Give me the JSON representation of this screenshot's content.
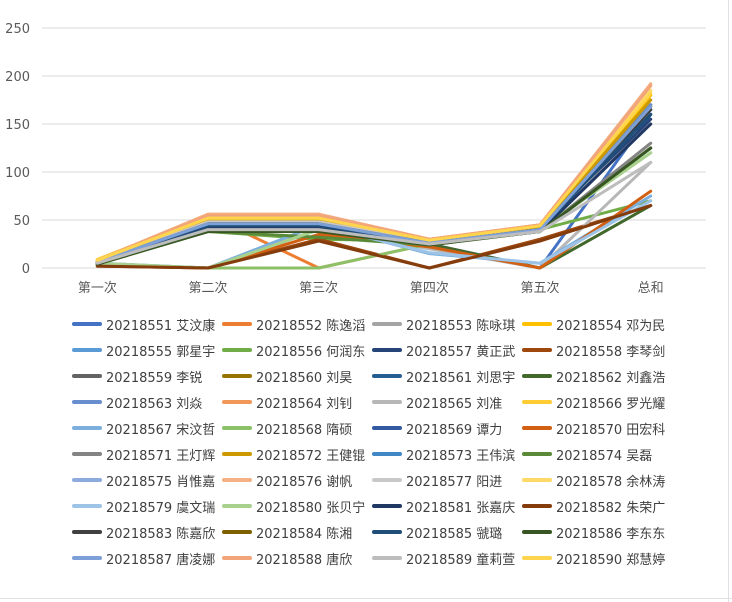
{
  "chart_data": {
    "type": "line",
    "title": "",
    "xlabel": "",
    "ylabel": "",
    "categories": [
      "第一次",
      "第二次",
      "第三次",
      "第四次",
      "第五次",
      "总和"
    ],
    "ylim": [
      0,
      250
    ],
    "yticks": [
      0,
      50,
      100,
      150,
      200,
      250
    ],
    "grid": true,
    "legend_position": "bottom",
    "series": [
      {
        "name": "20218551 艾汶康",
        "color": "#4472c4",
        "values": [
          5,
          45,
          40,
          25,
          0,
          160
        ]
      },
      {
        "name": "20218552 陈逸滔",
        "color": "#ed7d31",
        "values": [
          5,
          55,
          0,
          25,
          45,
          180
        ]
      },
      {
        "name": "20218553 陈咏琪",
        "color": "#a5a5a5",
        "values": [
          8,
          52,
          48,
          28,
          42,
          175
        ]
      },
      {
        "name": "20218554 邓为民",
        "color": "#ffc000",
        "values": [
          7,
          50,
          52,
          28,
          42,
          180
        ]
      },
      {
        "name": "20218555 郭星宇",
        "color": "#5b9bd5",
        "values": [
          6,
          48,
          50,
          26,
          40,
          170
        ]
      },
      {
        "name": "20218556 何润东",
        "color": "#70ad47",
        "values": [
          5,
          38,
          30,
          28,
          40,
          70
        ]
      },
      {
        "name": "20218557 黄正武",
        "color": "#264478",
        "values": [
          4,
          42,
          42,
          25,
          38,
          155
        ]
      },
      {
        "name": "20218558 李琴剑",
        "color": "#9e480e",
        "values": [
          2,
          0,
          30,
          0,
          30,
          65
        ]
      },
      {
        "name": "20218559 李锐",
        "color": "#636363",
        "values": [
          6,
          48,
          48,
          27,
          40,
          165
        ]
      },
      {
        "name": "20218560 刘昊",
        "color": "#997300",
        "values": [
          5,
          46,
          46,
          26,
          40,
          170
        ]
      },
      {
        "name": "20218561 刘思宇",
        "color": "#255e91",
        "values": [
          5,
          44,
          44,
          25,
          40,
          160
        ]
      },
      {
        "name": "20218562 刘鑫浩",
        "color": "#43682b",
        "values": [
          4,
          0,
          40,
          25,
          0,
          65
        ]
      },
      {
        "name": "20218563 刘焱",
        "color": "#698ed0",
        "values": [
          6,
          47,
          47,
          27,
          42,
          170
        ]
      },
      {
        "name": "20218564 刘钊",
        "color": "#f1975a",
        "values": [
          8,
          56,
          56,
          30,
          44,
          190
        ]
      },
      {
        "name": "20218565 刘准",
        "color": "#b7b7b7",
        "values": [
          5,
          0,
          40,
          20,
          0,
          110
        ]
      },
      {
        "name": "20218566 罗光耀",
        "color": "#ffcd33",
        "values": [
          9,
          54,
          54,
          30,
          45,
          185
        ]
      },
      {
        "name": "20218567 宋汶哲",
        "color": "#7cafdd",
        "values": [
          5,
          0,
          45,
          15,
          5,
          75
        ]
      },
      {
        "name": "20218568 隋硕",
        "color": "#8cc168",
        "values": [
          4,
          0,
          0,
          25,
          40,
          120
        ]
      },
      {
        "name": "20218569 谭力",
        "color": "#335aa1",
        "values": [
          5,
          45,
          45,
          26,
          40,
          165
        ]
      },
      {
        "name": "20218570 田宏科",
        "color": "#d26012",
        "values": [
          3,
          0,
          35,
          22,
          0,
          80
        ]
      },
      {
        "name": "20218571 王灯辉",
        "color": "#848484",
        "values": [
          5,
          40,
          40,
          25,
          38,
          130
        ]
      },
      {
        "name": "20218572 王健锟",
        "color": "#cc9a00",
        "values": [
          7,
          50,
          50,
          28,
          42,
          175
        ]
      },
      {
        "name": "20218573 王伟滨",
        "color": "#4087c5",
        "values": [
          6,
          46,
          46,
          26,
          40,
          168
        ]
      },
      {
        "name": "20218574 吴磊",
        "color": "#5a8a38",
        "values": [
          4,
          38,
          32,
          24,
          38,
          125
        ]
      },
      {
        "name": "20218575 肖惟嘉",
        "color": "#8faadc",
        "values": [
          5,
          45,
          45,
          26,
          40,
          165
        ]
      },
      {
        "name": "20218576 谢帆",
        "color": "#f4b183",
        "values": [
          8,
          56,
          56,
          30,
          45,
          192
        ]
      },
      {
        "name": "20218577 阳进",
        "color": "#c9c9c9",
        "values": [
          6,
          48,
          48,
          27,
          40,
          150
        ]
      },
      {
        "name": "20218578 余林涛",
        "color": "#ffd966",
        "values": [
          8,
          52,
          52,
          29,
          44,
          185
        ]
      },
      {
        "name": "20218579 虞文瑞",
        "color": "#9dc3e6",
        "values": [
          5,
          44,
          44,
          16,
          5,
          70
        ]
      },
      {
        "name": "20218580 张贝宁",
        "color": "#a9d18e",
        "values": [
          5,
          0,
          40,
          25,
          40,
          120
        ]
      },
      {
        "name": "20218581 张嘉庆",
        "color": "#203864",
        "values": [
          4,
          42,
          42,
          25,
          38,
          150
        ]
      },
      {
        "name": "20218582 朱荣广",
        "color": "#843c0c",
        "values": [
          2,
          0,
          28,
          0,
          28,
          65
        ]
      },
      {
        "name": "20218583 陈嘉欣",
        "color": "#404040",
        "values": [
          6,
          46,
          46,
          26,
          40,
          165
        ]
      },
      {
        "name": "20218584 陈湘",
        "color": "#7f6000",
        "values": [
          6,
          46,
          46,
          26,
          40,
          168
        ]
      },
      {
        "name": "20218585 虢璐",
        "color": "#1f4e79",
        "values": [
          5,
          44,
          44,
          25,
          40,
          160
        ]
      },
      {
        "name": "20218586 李东东",
        "color": "#375623",
        "values": [
          4,
          38,
          38,
          24,
          38,
          125
        ]
      },
      {
        "name": "20218587 唐凌娜",
        "color": "#7da0d8",
        "values": [
          6,
          46,
          46,
          26,
          40,
          168
        ]
      },
      {
        "name": "20218588 唐欣",
        "color": "#f2a47a",
        "values": [
          8,
          55,
          55,
          30,
          45,
          190
        ]
      },
      {
        "name": "20218589 童莉萱",
        "color": "#bdbdbd",
        "values": [
          5,
          40,
          40,
          25,
          38,
          110
        ]
      },
      {
        "name": "20218590 郑慧婷",
        "color": "#ffd54d",
        "values": [
          8,
          52,
          52,
          29,
          44,
          182
        ]
      }
    ]
  }
}
